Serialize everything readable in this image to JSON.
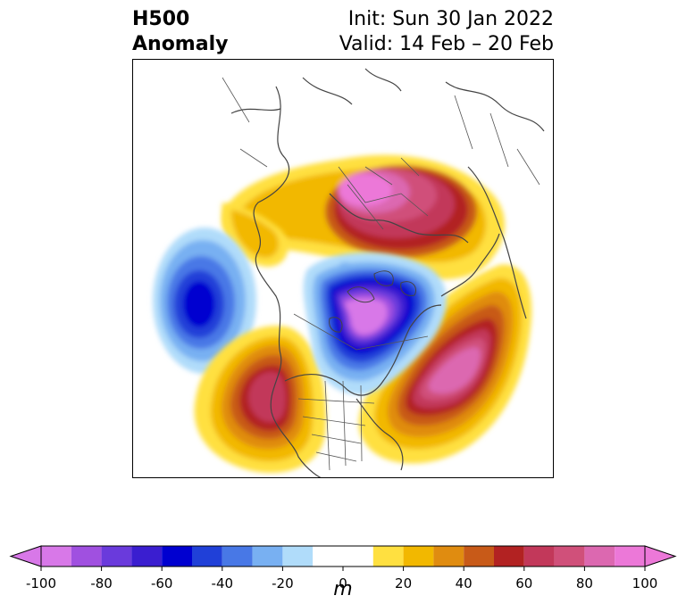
{
  "title": {
    "left_line1": "H500",
    "left_line2": "Anomaly",
    "right_line1": "Init: Sun 30 Jan 2022",
    "right_line2": "Valid: 14 Feb – 20 Feb"
  },
  "colorbar": {
    "units": "m",
    "ticks": [
      -100,
      -80,
      -60,
      -40,
      -20,
      0,
      20,
      40,
      60,
      80,
      100
    ],
    "levels": [
      -100,
      -90,
      -80,
      -70,
      -60,
      -50,
      -40,
      -30,
      -20,
      -10,
      10,
      20,
      30,
      40,
      50,
      60,
      70,
      80,
      90,
      100
    ],
    "colors": [
      "#d878e8",
      "#a050e0",
      "#6a3adc",
      "#3a1ed0",
      "#0000d0",
      "#2040d8",
      "#4878e6",
      "#78b0f2",
      "#b0dcfa",
      "#ffffff",
      "#ffe040",
      "#f2b800",
      "#e08c10",
      "#c85a18",
      "#b22222",
      "#c2385a",
      "#d0507a",
      "#dc68b0",
      "#ec78d8"
    ],
    "under_color": "#d878e8",
    "over_color": "#ec78d8"
  },
  "map": {
    "projection": "north-polar-stereographic",
    "features": [
      "coastlines",
      "country-borders",
      "state-borders"
    ]
  }
}
